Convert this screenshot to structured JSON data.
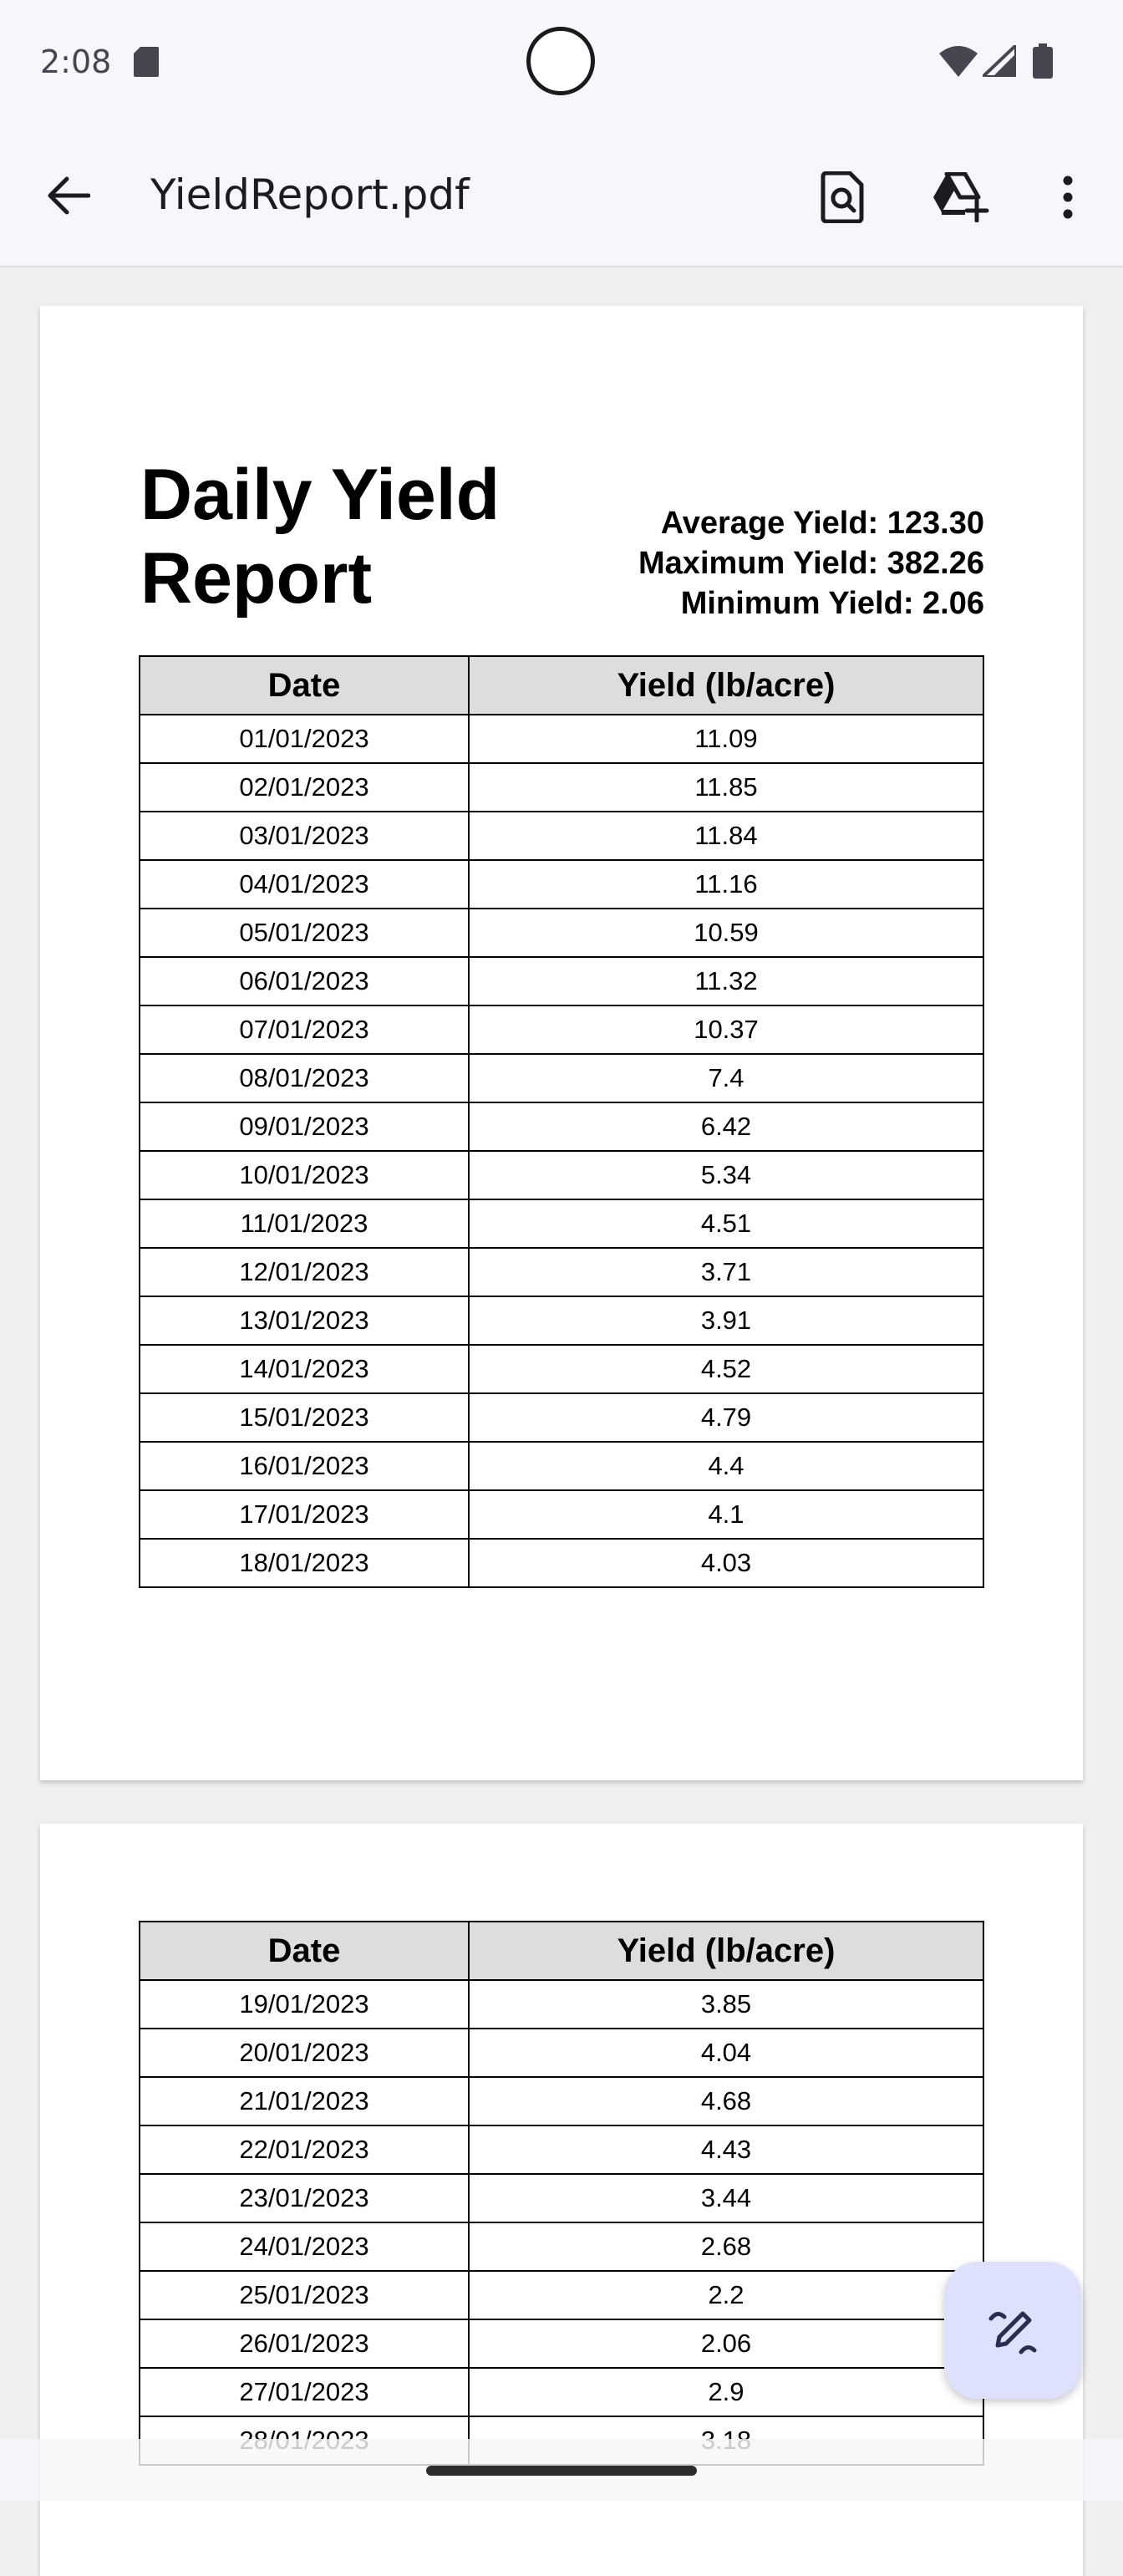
{
  "status_bar": {
    "time": "2:08"
  },
  "app_bar": {
    "title": "YieldReport.pdf"
  },
  "document": {
    "title_line1": "Daily Yield",
    "title_line2": "Report",
    "stats": {
      "average": "Average Yield: 123.30",
      "maximum": "Maximum Yield: 382.26",
      "minimum": "Minimum Yield: 2.06"
    },
    "headers": {
      "date": "Date",
      "yield": "Yield (lb/acre)"
    },
    "page1_rows": [
      {
        "date": "01/01/2023",
        "yield": "11.09"
      },
      {
        "date": "02/01/2023",
        "yield": "11.85"
      },
      {
        "date": "03/01/2023",
        "yield": "11.84"
      },
      {
        "date": "04/01/2023",
        "yield": "11.16"
      },
      {
        "date": "05/01/2023",
        "yield": "10.59"
      },
      {
        "date": "06/01/2023",
        "yield": "11.32"
      },
      {
        "date": "07/01/2023",
        "yield": "10.37"
      },
      {
        "date": "08/01/2023",
        "yield": "7.4"
      },
      {
        "date": "09/01/2023",
        "yield": "6.42"
      },
      {
        "date": "10/01/2023",
        "yield": "5.34"
      },
      {
        "date": "11/01/2023",
        "yield": "4.51"
      },
      {
        "date": "12/01/2023",
        "yield": "3.71"
      },
      {
        "date": "13/01/2023",
        "yield": "3.91"
      },
      {
        "date": "14/01/2023",
        "yield": "4.52"
      },
      {
        "date": "15/01/2023",
        "yield": "4.79"
      },
      {
        "date": "16/01/2023",
        "yield": "4.4"
      },
      {
        "date": "17/01/2023",
        "yield": "4.1"
      },
      {
        "date": "18/01/2023",
        "yield": "4.03"
      }
    ],
    "page2_rows": [
      {
        "date": "19/01/2023",
        "yield": "3.85"
      },
      {
        "date": "20/01/2023",
        "yield": "4.04"
      },
      {
        "date": "21/01/2023",
        "yield": "4.68"
      },
      {
        "date": "22/01/2023",
        "yield": "4.43"
      },
      {
        "date": "23/01/2023",
        "yield": "3.44"
      },
      {
        "date": "24/01/2023",
        "yield": "2.68"
      },
      {
        "date": "25/01/2023",
        "yield": "2.2"
      },
      {
        "date": "26/01/2023",
        "yield": "2.06"
      },
      {
        "date": "27/01/2023",
        "yield": "2.9"
      },
      {
        "date": "28/01/2023",
        "yield": "3.18"
      }
    ]
  },
  "icons": {
    "back": "arrow-back-icon",
    "find": "find-in-page-icon",
    "drive": "add-to-drive-icon",
    "more": "more-vert-icon",
    "edit": "edit-pen-icon"
  }
}
